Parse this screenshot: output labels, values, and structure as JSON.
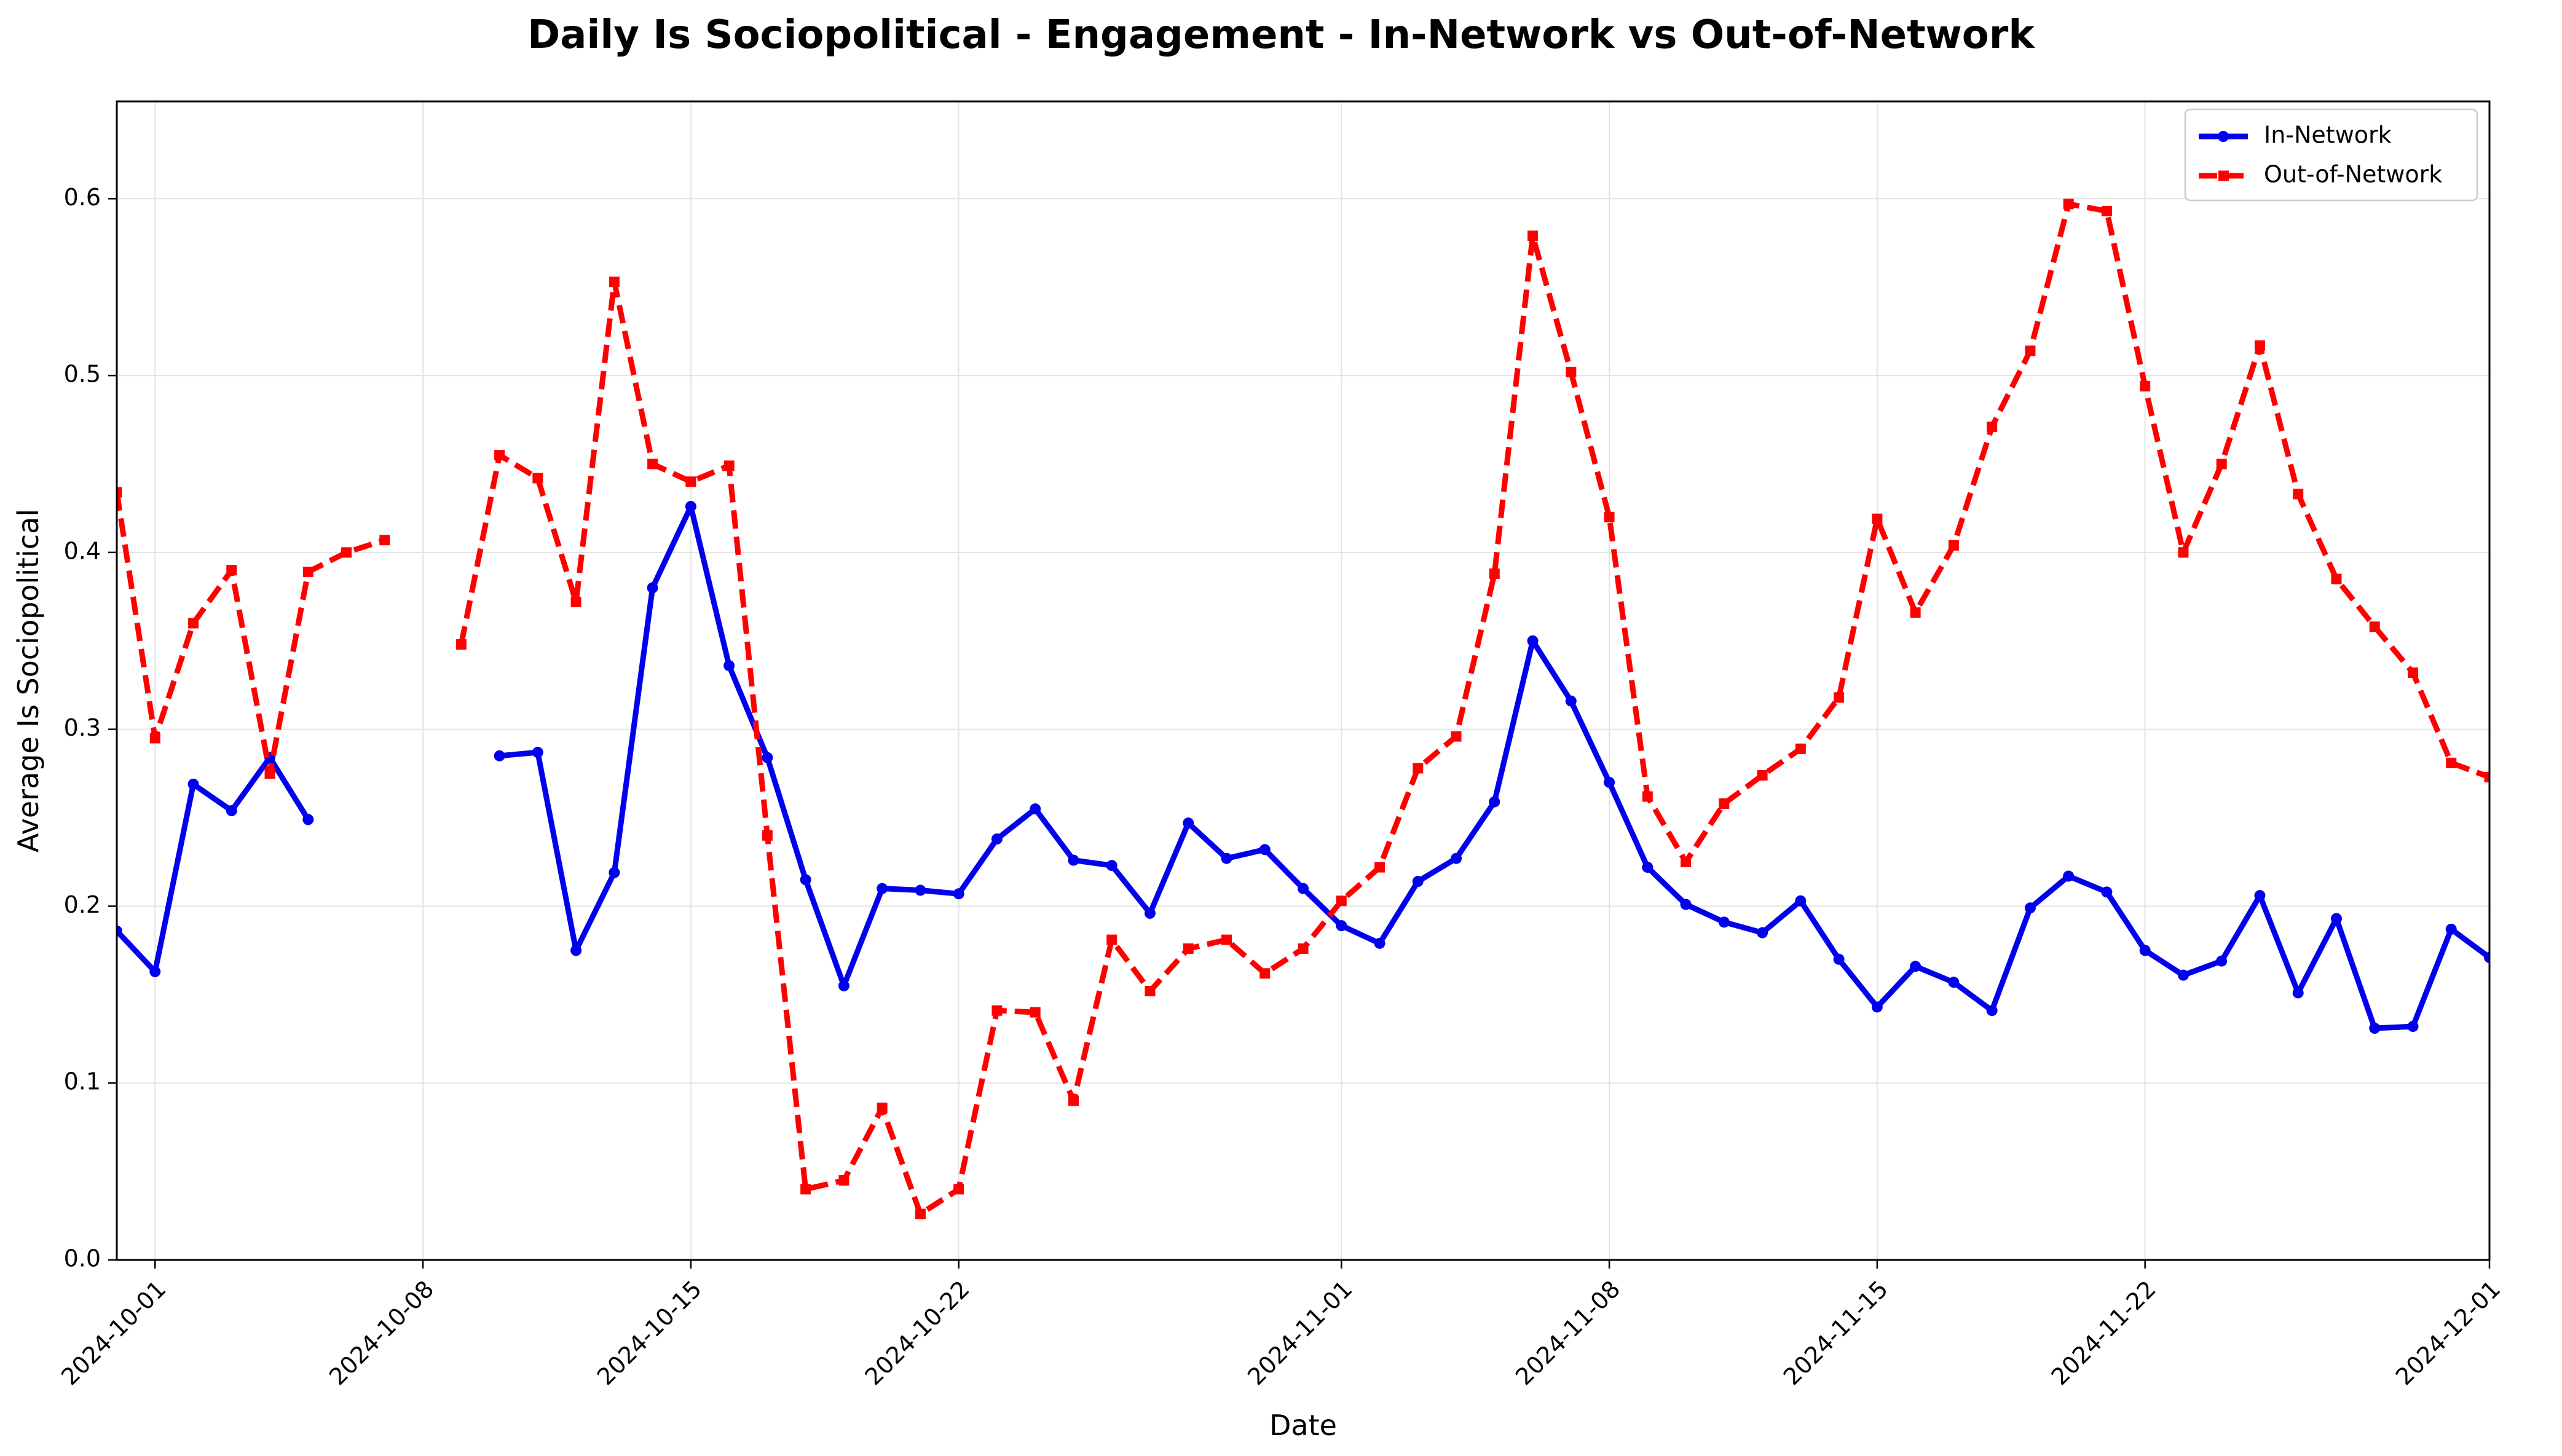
{
  "chart_data": {
    "type": "line",
    "title": "Daily Is Sociopolitical - Engagement - In-Network vs Out-of-Network",
    "xlabel": "Date",
    "ylabel": "Average Is Sociopolitical",
    "xlim": [
      "2024-09-30",
      "2024-12-01"
    ],
    "ylim": [
      0,
      0.655
    ],
    "x_ticks": [
      "2024-10-01",
      "2024-10-08",
      "2024-10-15",
      "2024-10-22",
      "2024-11-01",
      "2024-11-08",
      "2024-11-15",
      "2024-11-22",
      "2024-12-01"
    ],
    "y_ticks": [
      "0.0",
      "0.1",
      "0.2",
      "0.3",
      "0.4",
      "0.5",
      "0.6"
    ],
    "grid": true,
    "legend_position": "top-right",
    "series": [
      {
        "name": "In-Network",
        "color": "#0000ee",
        "style": "solid",
        "marker": "circle",
        "points": [
          [
            "2024-09-30",
            0.186
          ],
          [
            "2024-10-01",
            0.163
          ],
          [
            "2024-10-02",
            0.269
          ],
          [
            "2024-10-03",
            0.254
          ],
          [
            "2024-10-04",
            0.284
          ],
          [
            "2024-10-05",
            0.249
          ],
          [
            "2024-10-06",
            null
          ],
          [
            "2024-10-07",
            null
          ],
          [
            "2024-10-08",
            null
          ],
          [
            "2024-10-09",
            null
          ],
          [
            "2024-10-10",
            0.285
          ],
          [
            "2024-10-11",
            0.287
          ],
          [
            "2024-10-12",
            0.175
          ],
          [
            "2024-10-13",
            0.219
          ],
          [
            "2024-10-14",
            0.38
          ],
          [
            "2024-10-15",
            0.426
          ],
          [
            "2024-10-16",
            0.336
          ],
          [
            "2024-10-17",
            0.284
          ],
          [
            "2024-10-18",
            0.215
          ],
          [
            "2024-10-19",
            0.155
          ],
          [
            "2024-10-20",
            0.21
          ],
          [
            "2024-10-21",
            0.209
          ],
          [
            "2024-10-22",
            0.207
          ],
          [
            "2024-10-23",
            0.238
          ],
          [
            "2024-10-24",
            0.255
          ],
          [
            "2024-10-25",
            0.226
          ],
          [
            "2024-10-26",
            0.223
          ],
          [
            "2024-10-27",
            0.196
          ],
          [
            "2024-10-28",
            0.247
          ],
          [
            "2024-10-29",
            0.227
          ],
          [
            "2024-10-30",
            0.232
          ],
          [
            "2024-10-31",
            0.21
          ],
          [
            "2024-11-01",
            0.189
          ],
          [
            "2024-11-02",
            0.179
          ],
          [
            "2024-11-03",
            0.214
          ],
          [
            "2024-11-04",
            0.227
          ],
          [
            "2024-11-05",
            0.259
          ],
          [
            "2024-11-06",
            0.35
          ],
          [
            "2024-11-07",
            0.316
          ],
          [
            "2024-11-08",
            0.27
          ],
          [
            "2024-11-09",
            0.222
          ],
          [
            "2024-11-10",
            0.201
          ],
          [
            "2024-11-11",
            0.191
          ],
          [
            "2024-11-12",
            0.185
          ],
          [
            "2024-11-13",
            0.203
          ],
          [
            "2024-11-14",
            0.17
          ],
          [
            "2024-11-15",
            0.143
          ],
          [
            "2024-11-16",
            0.166
          ],
          [
            "2024-11-17",
            0.157
          ],
          [
            "2024-11-18",
            0.141
          ],
          [
            "2024-11-19",
            0.199
          ],
          [
            "2024-11-20",
            0.217
          ],
          [
            "2024-11-21",
            0.208
          ],
          [
            "2024-11-22",
            0.175
          ],
          [
            "2024-11-23",
            0.161
          ],
          [
            "2024-11-24",
            0.169
          ],
          [
            "2024-11-25",
            0.206
          ],
          [
            "2024-11-26",
            0.151
          ],
          [
            "2024-11-27",
            0.193
          ],
          [
            "2024-11-28",
            0.131
          ],
          [
            "2024-11-29",
            0.132
          ],
          [
            "2024-11-30",
            0.187
          ],
          [
            "2024-12-01",
            0.171
          ]
        ]
      },
      {
        "name": "Out-of-Network",
        "color": "#ff0000",
        "style": "dashed",
        "marker": "square",
        "points": [
          [
            "2024-09-30",
            0.434
          ],
          [
            "2024-10-01",
            0.295
          ],
          [
            "2024-10-02",
            0.36
          ],
          [
            "2024-10-03",
            0.39
          ],
          [
            "2024-10-04",
            0.275
          ],
          [
            "2024-10-05",
            0.389
          ],
          [
            "2024-10-06",
            0.4
          ],
          [
            "2024-10-07",
            0.407
          ],
          [
            "2024-10-08",
            null
          ],
          [
            "2024-10-09",
            0.348
          ],
          [
            "2024-10-10",
            0.455
          ],
          [
            "2024-10-11",
            0.442
          ],
          [
            "2024-10-12",
            0.372
          ],
          [
            "2024-10-13",
            0.553
          ],
          [
            "2024-10-14",
            0.45
          ],
          [
            "2024-10-15",
            0.44
          ],
          [
            "2024-10-16",
            0.449
          ],
          [
            "2024-10-17",
            0.24
          ],
          [
            "2024-10-18",
            0.04
          ],
          [
            "2024-10-19",
            0.045
          ],
          [
            "2024-10-20",
            0.086
          ],
          [
            "2024-10-21",
            0.026
          ],
          [
            "2024-10-22",
            0.04
          ],
          [
            "2024-10-23",
            0.141
          ],
          [
            "2024-10-24",
            0.14
          ],
          [
            "2024-10-25",
            0.09
          ],
          [
            "2024-10-26",
            0.181
          ],
          [
            "2024-10-27",
            0.152
          ],
          [
            "2024-10-28",
            0.176
          ],
          [
            "2024-10-29",
            0.181
          ],
          [
            "2024-10-30",
            0.162
          ],
          [
            "2024-10-31",
            0.176
          ],
          [
            "2024-11-01",
            0.203
          ],
          [
            "2024-11-02",
            0.222
          ],
          [
            "2024-11-03",
            0.278
          ],
          [
            "2024-11-04",
            0.296
          ],
          [
            "2024-11-05",
            0.388
          ],
          [
            "2024-11-06",
            0.579
          ],
          [
            "2024-11-07",
            0.502
          ],
          [
            "2024-11-08",
            0.42
          ],
          [
            "2024-11-09",
            0.262
          ],
          [
            "2024-11-10",
            0.225
          ],
          [
            "2024-11-11",
            0.258
          ],
          [
            "2024-11-12",
            0.274
          ],
          [
            "2024-11-13",
            0.289
          ],
          [
            "2024-11-14",
            0.318
          ],
          [
            "2024-11-15",
            0.419
          ],
          [
            "2024-11-16",
            0.366
          ],
          [
            "2024-11-17",
            0.404
          ],
          [
            "2024-11-18",
            0.471
          ],
          [
            "2024-11-19",
            0.514
          ],
          [
            "2024-11-20",
            0.597
          ],
          [
            "2024-11-21",
            0.593
          ],
          [
            "2024-11-22",
            0.494
          ],
          [
            "2024-11-23",
            0.4
          ],
          [
            "2024-11-24",
            0.45
          ],
          [
            "2024-11-25",
            0.517
          ],
          [
            "2024-11-26",
            0.433
          ],
          [
            "2024-11-27",
            0.385
          ],
          [
            "2024-11-28",
            0.358
          ],
          [
            "2024-11-29",
            0.332
          ],
          [
            "2024-11-30",
            0.281
          ],
          [
            "2024-12-01",
            0.273
          ]
        ]
      }
    ]
  }
}
